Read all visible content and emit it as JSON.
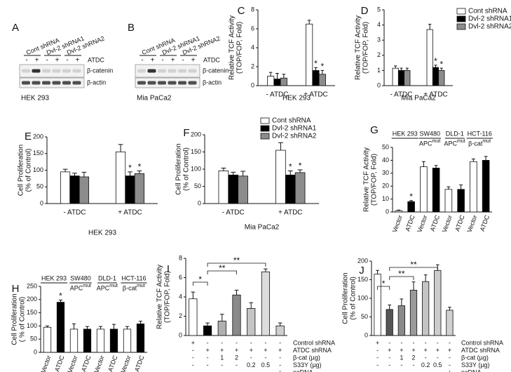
{
  "blots": [
    {
      "panel": "A",
      "lanes": [
        "Cont shRNA",
        "Dvl-2 shRNA1",
        "Dvl-2 shRNA2"
      ],
      "treatment_name": "ATDC",
      "treatment": [
        "-",
        "+",
        "-",
        "+",
        "-",
        "+"
      ],
      "bands": [
        "β-catenin",
        "β-actin"
      ],
      "cell_line": "HEK 293"
    },
    {
      "panel": "B",
      "lanes": [
        "Cont shRNA",
        "Dvl-2 shRNA1",
        "Dvl-2 shRNA2"
      ],
      "treatment_name": "ATDC",
      "treatment": [
        "-",
        "+",
        "-",
        "+",
        "-",
        "+"
      ],
      "bands": [
        "β-catenin",
        "β-actin"
      ],
      "cell_line": "Mia PaCa2"
    }
  ],
  "chart_data": [
    {
      "panel": "C",
      "type": "grouped_bar",
      "title": "HEK 293",
      "y_label": [
        "Relative TCF Activity",
        "(TOP/FOP, Fold)"
      ],
      "categories": [
        "- ATDC",
        "+ ATDC"
      ],
      "series": [
        {
          "color": "#ffffff",
          "values": [
            1.0,
            6.5
          ],
          "errors": [
            0.4,
            0.4
          ]
        },
        {
          "color": "#000000",
          "values": [
            0.7,
            1.6
          ],
          "errors": [
            0.6,
            0.3
          ]
        },
        {
          "color": "#8c8c8c",
          "values": [
            0.8,
            1.2
          ],
          "errors": [
            0.4,
            0.4
          ]
        }
      ],
      "ylim": [
        0,
        8
      ],
      "yticks": [
        0,
        2,
        4,
        6,
        8
      ],
      "stars": [
        "*",
        "*"
      ]
    },
    {
      "panel": "D",
      "type": "grouped_bar",
      "title": "Mia PaCa2",
      "y_label": [
        "Relative TCF Activity",
        "(TOP/FOP, Fold)"
      ],
      "categories": [
        "- ATDC",
        "+ ATDC"
      ],
      "series": [
        {
          "name": "Cont shRNA",
          "color": "#ffffff",
          "values": [
            1.15,
            3.7
          ],
          "errors": [
            0.15,
            0.35
          ]
        },
        {
          "name": "Dvl-2 shRNA1",
          "color": "#000000",
          "values": [
            1.0,
            1.2
          ],
          "errors": [
            0.15,
            0.15
          ]
        },
        {
          "name": "Dvl-2 shRNA2",
          "color": "#8c8c8c",
          "values": [
            1.0,
            1.0
          ],
          "errors": [
            0.15,
            0.15
          ]
        }
      ],
      "ylim": [
        0,
        5
      ],
      "yticks": [
        0,
        1,
        2,
        3,
        4,
        5
      ],
      "stars": [
        "*",
        "*"
      ],
      "legend": "upper right"
    },
    {
      "panel": "E",
      "type": "grouped_bar",
      "title": "HEK 293",
      "y_label": [
        "Cell Proliferation",
        "(% of Control)"
      ],
      "categories": [
        "- ATDC",
        "+ ATDC"
      ],
      "series": [
        {
          "color": "#ffffff",
          "values": [
            95,
            155
          ],
          "errors": [
            8,
            22
          ]
        },
        {
          "color": "#000000",
          "values": [
            83,
            83
          ],
          "errors": [
            8,
            12
          ]
        },
        {
          "color": "#8c8c8c",
          "values": [
            80,
            90
          ],
          "errors": [
            14,
            8
          ]
        }
      ],
      "ylim": [
        0,
        200
      ],
      "yticks": [
        0,
        50,
        100,
        150,
        200
      ],
      "stars": [
        "*",
        "*"
      ]
    },
    {
      "panel": "F",
      "type": "grouped_bar",
      "title": "Mia PaCa2",
      "y_label": [
        "Cell Proliferation",
        "(% of Control)"
      ],
      "categories": [
        "- ATDC",
        "+ ATDC"
      ],
      "series": [
        {
          "name": "Cont shRNA",
          "color": "#ffffff",
          "values": [
            95,
            155
          ],
          "errors": [
            8,
            22
          ]
        },
        {
          "name": "Dvl-2 shRNA1",
          "color": "#000000",
          "values": [
            83,
            83
          ],
          "errors": [
            8,
            12
          ]
        },
        {
          "name": "Dvl-2 shRNA2",
          "color": "#8c8c8c",
          "values": [
            80,
            90
          ],
          "errors": [
            14,
            8
          ]
        }
      ],
      "ylim": [
        0,
        200
      ],
      "yticks": [
        0,
        50,
        100,
        150,
        200
      ],
      "stars": [
        "*",
        "*"
      ],
      "legend": "upper right"
    },
    {
      "panel": "G",
      "type": "bar",
      "y_label": [
        "Relative TCF Activity",
        "(TOP/FOP, Fold)"
      ],
      "categories": [
        "Vector",
        "ATDC",
        "Vector",
        "ATDC",
        "Vector",
        "ATDC",
        "Vector",
        "ATDC"
      ],
      "values": [
        1,
        8,
        35,
        34,
        17.5,
        17.5,
        39,
        40
      ],
      "errors": [
        0.5,
        0.8,
        4,
        2,
        2,
        3.5,
        2,
        3
      ],
      "colors": [
        "#ffffff",
        "#000000",
        "#ffffff",
        "#000000",
        "#ffffff",
        "#000000",
        "#ffffff",
        "#000000"
      ],
      "groups": [
        {
          "name": "HEK 293"
        },
        {
          "name": "SW480",
          "mutation": "APC",
          "superscript": "mut"
        },
        {
          "name": "DLD-1",
          "mutation": "APC",
          "superscript": "mut"
        },
        {
          "name": "HCT-116",
          "mutation": "β-cat",
          "superscript": "mut"
        }
      ],
      "ylim": [
        0,
        50
      ],
      "yticks": [
        0,
        10,
        20,
        30,
        40,
        50
      ],
      "stars": [
        "*"
      ]
    },
    {
      "panel": "H",
      "type": "bar",
      "y_label": [
        "Cell Proliferation",
        "( % of Control)"
      ],
      "categories": [
        "Vector",
        "ATDC",
        "Vector",
        "ATDC",
        "Vector",
        "ATDC",
        "Vector",
        "ATDC"
      ],
      "values": [
        95,
        190,
        88,
        88,
        88,
        88,
        88,
        108
      ],
      "errors": [
        5,
        8,
        20,
        10,
        10,
        18,
        10,
        10
      ],
      "colors": [
        "#ffffff",
        "#000000",
        "#ffffff",
        "#000000",
        "#ffffff",
        "#000000",
        "#ffffff",
        "#000000"
      ],
      "groups": [
        {
          "name": "HEK 293"
        },
        {
          "name": "SW480",
          "mutation": "APC",
          "superscript": "mut"
        },
        {
          "name": "DLD-1",
          "mutation": "APC",
          "superscript": "mut"
        },
        {
          "name": "HCT-116",
          "mutation": "β-cat",
          "superscript": "mut"
        }
      ],
      "ylim": [
        0,
        250
      ],
      "yticks": [
        0,
        50,
        100,
        150,
        200,
        250
      ],
      "stars": [
        "*"
      ]
    },
    {
      "panel": "I",
      "type": "bar",
      "y_label": [
        "Relative TCF Activity",
        "(TOP/FOP, Fold)"
      ],
      "values": [
        3.8,
        1.0,
        1.5,
        4.2,
        2.8,
        6.6,
        1.0
      ],
      "errors": [
        0.7,
        0.3,
        0.7,
        0.5,
        0.6,
        0.3,
        0.3
      ],
      "colors": [
        "#ffffff",
        "#000000",
        "#b0b0b0",
        "#8a8a8a",
        "#c4c4c4",
        "#dcdcdc",
        "#cfcfcf"
      ],
      "conditions": [
        {
          "name": "Control shRNA",
          "entries": [
            "+",
            "-",
            "-",
            "-",
            "-",
            "-",
            "-"
          ]
        },
        {
          "name": "ATDC shRNA",
          "entries": [
            "-",
            "+",
            "+",
            "+",
            "+",
            "+",
            "+"
          ]
        },
        {
          "name": "β-cat (µg)",
          "entries": [
            "-",
            "-",
            "1",
            "2",
            "-",
            "-",
            "-"
          ]
        },
        {
          "name": "S33Y (µg)",
          "entries": [
            "-",
            "-",
            "-",
            "-",
            "0.2",
            "0.5",
            "-"
          ]
        },
        {
          "name": "pcDNA",
          "entries": [
            "-",
            "-",
            "-",
            "-",
            "-",
            "-",
            "+"
          ]
        }
      ],
      "ylim": [
        0,
        8
      ],
      "yticks": [
        0,
        2,
        4,
        6,
        8
      ],
      "significance": [
        "*",
        "**",
        "**"
      ]
    },
    {
      "panel": "J",
      "type": "bar",
      "y_label": [
        "Cell Proliferation",
        "(% of Control)"
      ],
      "values": [
        165,
        70,
        80,
        122,
        145,
        175,
        68
      ],
      "errors": [
        10,
        12,
        18,
        22,
        18,
        15,
        8
      ],
      "colors": [
        "#ffffff",
        "#555555",
        "#8a8a8a",
        "#9a9a9a",
        "#c4c4c4",
        "#cccccc",
        "#d0d0d0"
      ],
      "conditions": [
        {
          "name": "Control shRNA",
          "entries": [
            "+",
            "-",
            "-",
            "-",
            "-",
            "-",
            "-"
          ]
        },
        {
          "name": "ATDC shRNA",
          "entries": [
            "-",
            "+",
            "+",
            "+",
            "+",
            "+",
            "+"
          ]
        },
        {
          "name": "β-cat (µg)",
          "entries": [
            "-",
            "-",
            "1",
            "2",
            "-",
            "-",
            "-"
          ]
        },
        {
          "name": "S33Y (µg)",
          "entries": [
            "-",
            "-",
            "-",
            "-",
            "0.2",
            "0.5",
            "-"
          ]
        },
        {
          "name": "pcDNA",
          "entries": [
            "-",
            "-",
            "-",
            "-",
            "-",
            "-",
            "+"
          ]
        }
      ],
      "ylim": [
        0,
        200
      ],
      "yticks": [
        0,
        50,
        100,
        150,
        200
      ],
      "significance": [
        "*",
        "**",
        "**"
      ]
    }
  ]
}
